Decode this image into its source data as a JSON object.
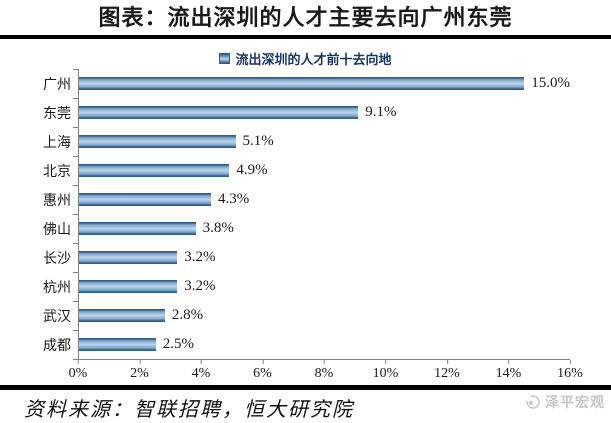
{
  "title": "图表：流出深圳的人才主要去向广州东莞",
  "legend": {
    "label": "流出深圳的人才前十去向地"
  },
  "chart_data": {
    "type": "bar",
    "orientation": "horizontal",
    "title": "流出深圳的人才前十去向地",
    "categories": [
      "广州",
      "东莞",
      "上海",
      "北京",
      "惠州",
      "佛山",
      "长沙",
      "杭州",
      "武汉",
      "成都"
    ],
    "values": [
      15.0,
      9.1,
      5.1,
      4.9,
      4.3,
      3.8,
      3.2,
      3.2,
      2.8,
      2.5
    ],
    "data_labels": [
      "15.0%",
      "9.1%",
      "5.1%",
      "4.9%",
      "4.3%",
      "3.8%",
      "3.2%",
      "3.2%",
      "2.8%",
      "2.5%"
    ],
    "xlabel": "",
    "ylabel": "",
    "xlim": [
      0,
      16
    ],
    "x_ticks": [
      "0%",
      "2%",
      "4%",
      "6%",
      "8%",
      "10%",
      "12%",
      "14%",
      "16%"
    ],
    "legend_position": "top",
    "grid": false
  },
  "footer": {
    "source": "资料来源：智联招聘，恒大研究院",
    "watermark": "泽平宏观"
  },
  "colors": {
    "bar_dark": "#2f5e8d",
    "bar_mid": "#7da6cb",
    "bar_light": "#bdd5e9",
    "watermark_gray": "#c6c6c6"
  }
}
